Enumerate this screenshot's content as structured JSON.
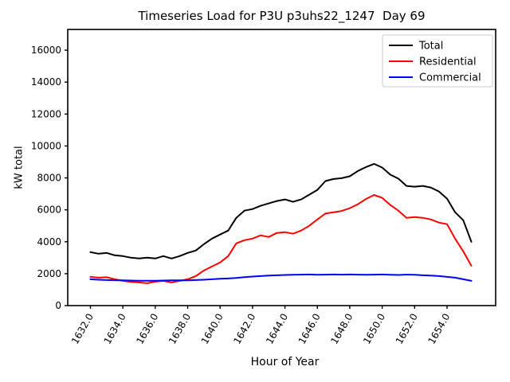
{
  "title": "Timeseries Load for P3U p3uhs22_1247  Day 69",
  "chart_data": {
    "type": "line",
    "title": "Timeseries Load for P3U p3uhs22_1247  Day 69",
    "xlabel": "Hour of Year",
    "ylabel": "kW total",
    "grid": false,
    "background": "#ffffff",
    "legend_position": "upper right",
    "xlim": [
      1630.6,
      1657.0
    ],
    "ylim": [
      0,
      17300
    ],
    "xticks": [
      1632,
      1634,
      1636,
      1638,
      1640,
      1642,
      1644,
      1646,
      1648,
      1650,
      1652,
      1654
    ],
    "xtick_labels": [
      "1632.0",
      "1634.0",
      "1636.0",
      "1638.0",
      "1640.0",
      "1642.0",
      "1644.0",
      "1646.0",
      "1648.0",
      "1650.0",
      "1652.0",
      "1654.0"
    ],
    "yticks": [
      0,
      2000,
      4000,
      6000,
      8000,
      10000,
      12000,
      14000,
      16000
    ],
    "ytick_labels": [
      "0",
      "2000",
      "4000",
      "6000",
      "8000",
      "10000",
      "12000",
      "14000",
      "16000"
    ],
    "x": [
      1632.0,
      1632.5,
      1633.0,
      1633.5,
      1634.0,
      1634.5,
      1635.0,
      1635.5,
      1636.0,
      1636.5,
      1637.0,
      1637.5,
      1638.0,
      1638.5,
      1639.0,
      1639.5,
      1640.0,
      1640.5,
      1641.0,
      1641.5,
      1642.0,
      1642.5,
      1643.0,
      1643.5,
      1644.0,
      1644.5,
      1645.0,
      1645.5,
      1646.0,
      1646.5,
      1647.0,
      1647.5,
      1648.0,
      1648.5,
      1649.0,
      1649.5,
      1650.0,
      1650.5,
      1651.0,
      1651.5,
      1652.0,
      1652.5,
      1653.0,
      1653.5,
      1654.0,
      1654.5,
      1655.0,
      1655.5
    ],
    "series": [
      {
        "name": "Total",
        "color": "#000000",
        "values": [
          3350,
          3250,
          3300,
          3150,
          3100,
          3000,
          2950,
          3000,
          2950,
          3100,
          2950,
          3100,
          3300,
          3450,
          3850,
          4200,
          4450,
          4700,
          5500,
          5950,
          6050,
          6250,
          6400,
          6550,
          6650,
          6500,
          6650,
          6950,
          7250,
          7800,
          7930,
          7980,
          8100,
          8430,
          8680,
          8880,
          8650,
          8200,
          7950,
          7500,
          7450,
          7500,
          7400,
          7150,
          6700,
          5850,
          5350,
          4000
        ]
      },
      {
        "name": "Residential",
        "color": "#ff0000",
        "values": [
          1800,
          1750,
          1780,
          1650,
          1550,
          1480,
          1450,
          1400,
          1500,
          1550,
          1450,
          1550,
          1650,
          1850,
          2200,
          2450,
          2700,
          3100,
          3900,
          4100,
          4200,
          4400,
          4300,
          4550,
          4600,
          4500,
          4700,
          5000,
          5400,
          5770,
          5850,
          5930,
          6100,
          6350,
          6680,
          6930,
          6750,
          6300,
          5950,
          5500,
          5550,
          5500,
          5400,
          5200,
          5100,
          4200,
          3400,
          2500
        ]
      },
      {
        "name": "Commercial",
        "color": "#0000ff",
        "values": [
          1650,
          1620,
          1600,
          1590,
          1580,
          1570,
          1560,
          1560,
          1560,
          1570,
          1580,
          1580,
          1580,
          1600,
          1620,
          1650,
          1680,
          1700,
          1730,
          1780,
          1820,
          1850,
          1880,
          1900,
          1920,
          1930,
          1940,
          1950,
          1930,
          1940,
          1950,
          1940,
          1950,
          1940,
          1930,
          1940,
          1950,
          1930,
          1920,
          1940,
          1930,
          1900,
          1880,
          1850,
          1800,
          1750,
          1650,
          1550
        ]
      }
    ]
  }
}
